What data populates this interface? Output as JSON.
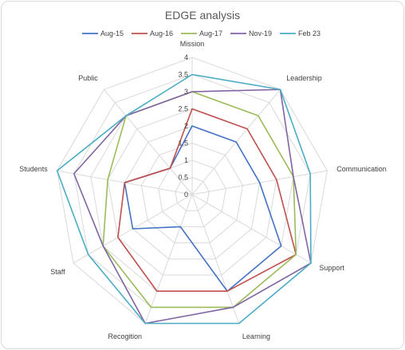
{
  "chart_data": {
    "type": "radar",
    "title": "EDGE analysis",
    "categories": [
      "Mission",
      "Leadership",
      "Communication",
      "Support",
      "Learning",
      "Recogition",
      "Staff",
      "Students",
      "Public"
    ],
    "ylim": [
      0,
      4
    ],
    "ticks": [
      "0",
      "0.5",
      "1",
      "1.5",
      "2",
      "2.5",
      "3",
      "3.5",
      "4"
    ],
    "legend_position": "top",
    "gridlines": true,
    "series": [
      {
        "name": "Aug-15",
        "color": "#4472c4",
        "values": [
          2,
          2,
          2,
          3,
          3,
          1,
          2,
          2,
          1
        ]
      },
      {
        "name": "Aug-16",
        "color": "#c0504d",
        "values": [
          2.5,
          2.5,
          2.5,
          3.5,
          3,
          3,
          2.5,
          2,
          1
        ]
      },
      {
        "name": "Aug-17",
        "color": "#9bbb59",
        "values": [
          3,
          3,
          3,
          3.5,
          3.5,
          3.5,
          3,
          2.5,
          3
        ]
      },
      {
        "name": "Nov-19",
        "color": "#8064a2",
        "values": [
          3,
          4,
          3,
          4,
          3.5,
          4,
          3,
          3.5,
          3
        ]
      },
      {
        "name": "Feb 23",
        "color": "#4bacc6",
        "values": [
          3.5,
          4,
          3.5,
          4,
          4,
          4,
          3.5,
          4,
          3
        ]
      }
    ]
  }
}
